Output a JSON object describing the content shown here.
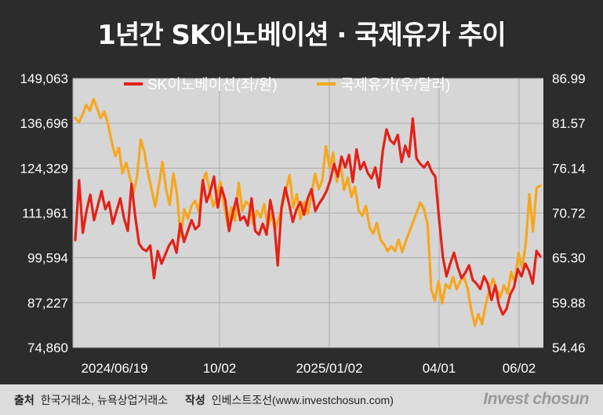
{
  "title": "1년간 SK이노베이션 · 국제유가 추이",
  "chart_data": {
    "type": "line",
    "legend_placement": "top",
    "grid": true,
    "x_ticks": [
      "2024/06/19",
      "10/02",
      "2025/01/02",
      "04/01",
      "06/02"
    ],
    "y_left": {
      "ticks": [
        "149,063",
        "136,696",
        "124,329",
        "111,961",
        "99,594",
        "87,227",
        "74,860"
      ],
      "range": [
        74860,
        149063
      ]
    },
    "y_right": {
      "ticks": [
        "86.99",
        "81.57",
        "76.14",
        "70.72",
        "65.30",
        "59.88",
        "54.46"
      ],
      "range": [
        54.46,
        86.99
      ]
    },
    "series": [
      {
        "name": "SK이노베이션(좌/원)",
        "color": "#e32119",
        "axis": "left",
        "values": [
          104500,
          121000,
          106500,
          112500,
          117000,
          110000,
          114000,
          118000,
          113000,
          115000,
          109000,
          112500,
          116000,
          110500,
          107000,
          120000,
          111000,
          103500,
          102000,
          101500,
          103000,
          94000,
          101500,
          98000,
          100500,
          103000,
          104500,
          101000,
          109000,
          104000,
          107000,
          110000,
          107500,
          108500,
          121000,
          115000,
          118000,
          122000,
          113500,
          119000,
          115500,
          107000,
          112000,
          116000,
          110000,
          111000,
          108500,
          116000,
          107000,
          106000,
          109000,
          106000,
          115500,
          110000,
          97500,
          113500,
          119000,
          114500,
          109500,
          113000,
          115000,
          111500,
          116000,
          118500,
          112500,
          114500,
          116000,
          118000,
          121000,
          125500,
          122000,
          127500,
          124500,
          128000,
          120500,
          129500,
          124000,
          126000,
          123000,
          121500,
          124500,
          119000,
          129000,
          135000,
          132000,
          131000,
          133500,
          126000,
          130500,
          127500,
          138000,
          127000,
          125500,
          124500,
          126000,
          123500,
          122000,
          110500,
          100000,
          94500,
          98000,
          101000,
          97000,
          94000,
          95500,
          97500,
          93500,
          92500,
          91000,
          94500,
          92500,
          88000,
          92000,
          86500,
          84000,
          85500,
          89500,
          91500,
          96500,
          94500,
          98000,
          96000,
          92500,
          101500,
          100000
        ]
      },
      {
        "name": "국제유가(우/달러)",
        "color": "#f6a71f",
        "axis": "right",
        "values": [
          82.2,
          81.7,
          82.6,
          83.8,
          83.1,
          84.5,
          83.4,
          82.2,
          83.0,
          81.5,
          79.4,
          77.6,
          78.6,
          75.5,
          76.8,
          75.1,
          73.1,
          75.1,
          79.6,
          78.2,
          75.6,
          73.6,
          71.5,
          74.1,
          76.9,
          73.6,
          71.7,
          75.5,
          73.0,
          67.8,
          71.2,
          70.0,
          71.6,
          72.2,
          70.9,
          74.4,
          75.6,
          73.4,
          71.5,
          72.8,
          74.5,
          71.6,
          69.2,
          71.4,
          69.8,
          74.4,
          71.0,
          72.1,
          71.6,
          69.3,
          71.0,
          70.2,
          71.8,
          69.0,
          70.6,
          68.6,
          70.1,
          71.5,
          73.5,
          75.3,
          71.4,
          73.0,
          70.0,
          72.1,
          70.6,
          72.8,
          75.5,
          73.6,
          74.7,
          78.8,
          76.2,
          78.0,
          74.5,
          76.8,
          73.5,
          75.0,
          72.7,
          73.9,
          71.0,
          70.4,
          71.6,
          69.0,
          68.2,
          69.5,
          67.5,
          66.9,
          66.1,
          66.7,
          66.1,
          67.5,
          66.0,
          67.3,
          68.5,
          69.7,
          70.8,
          72.0,
          71.2,
          69.3,
          61.5,
          60.1,
          62.5,
          59.8,
          62.1,
          61.6,
          63.0,
          61.5,
          62.5,
          63.0,
          61.6,
          59.0,
          57.1,
          58.5,
          57.3,
          59.7,
          61.4,
          62.8,
          61.5,
          60.5,
          62.0,
          61.0,
          63.6,
          62.3,
          65.9,
          64.1,
          67.0,
          73.0,
          68.5,
          73.8,
          74.0
        ]
      }
    ]
  },
  "footer": {
    "source_label": "출처",
    "source_text": "한국거래소, 뉴욕상업거래소",
    "author_label": "작성",
    "author_text": "인베스트조선(www.investchosun.com)",
    "brand": "Invest chosun"
  }
}
